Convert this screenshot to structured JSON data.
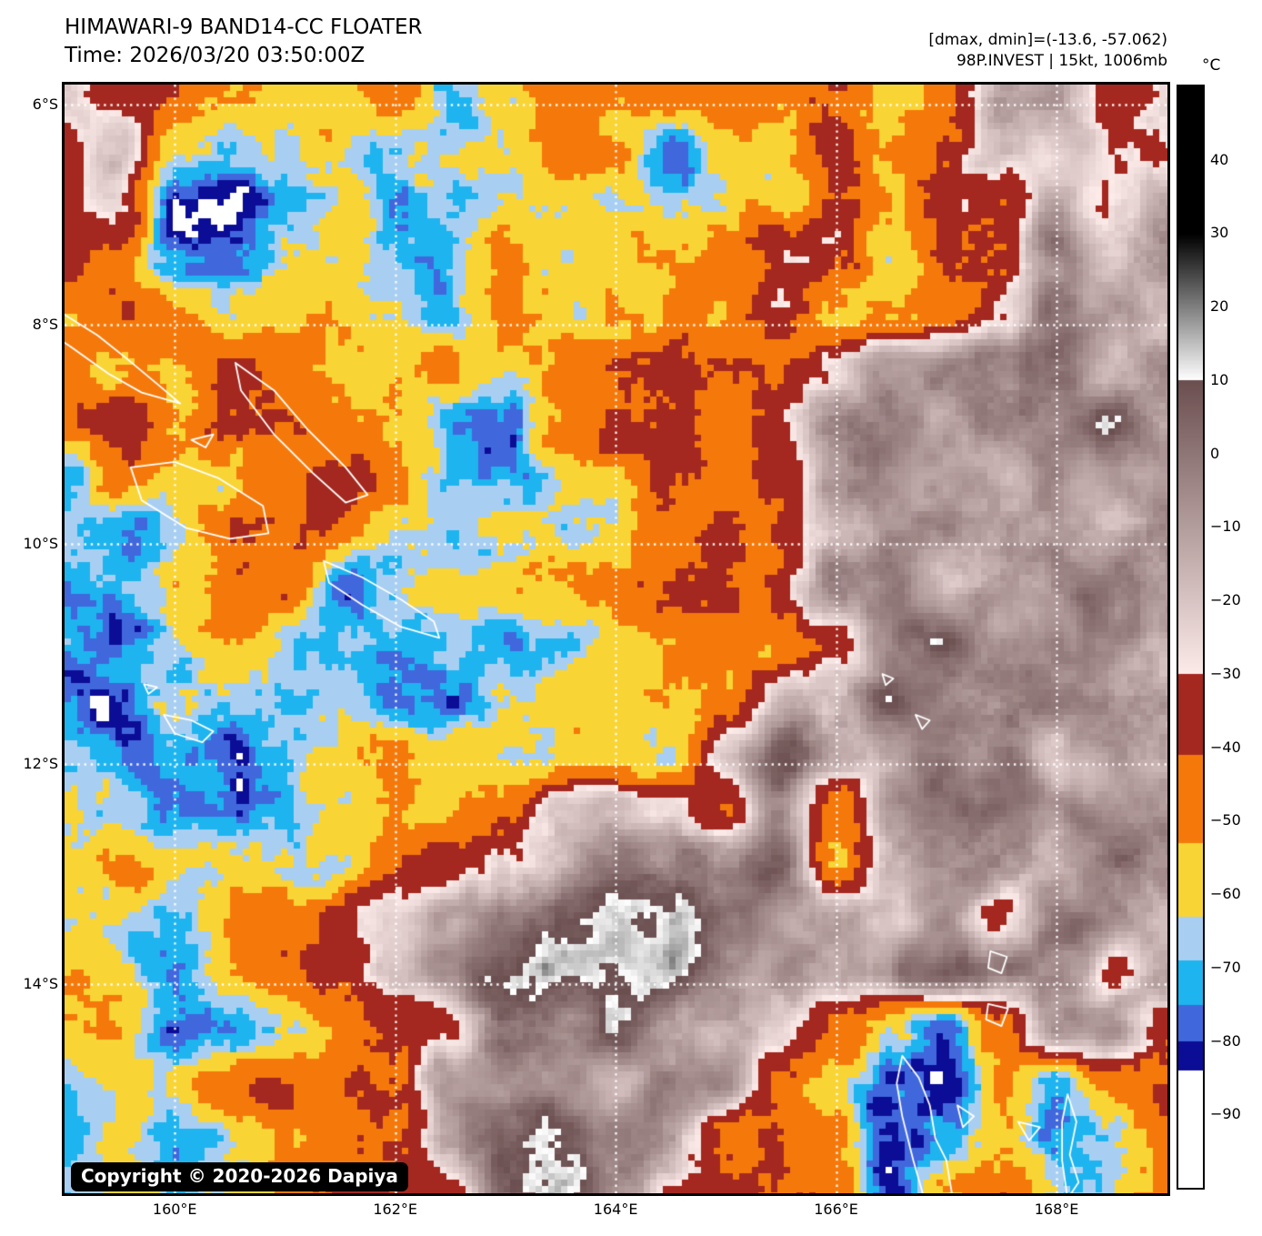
{
  "header": {
    "title": "HIMAWARI-9 BAND14-CC FLOATER",
    "time": "Time: 2026/03/20 03:50:00Z",
    "dmax_dmin": "[dmax, dmin]=(-13.6, -57.062)",
    "storm_info": "98P.INVEST | 15kt, 1006mb"
  },
  "map": {
    "copyright": "Copyright © 2020-2026 Dapiya",
    "lon_min": 159.0,
    "lon_max": 169.006,
    "lat_min": 5.82,
    "lat_max": 15.9,
    "grid_color": "#ffffff",
    "x_ticks": [
      {
        "label": "160°E",
        "lon": 160
      },
      {
        "label": "162°E",
        "lon": 162
      },
      {
        "label": "164°E",
        "lon": 164
      },
      {
        "label": "166°E",
        "lon": 166
      },
      {
        "label": "168°E",
        "lon": 168
      }
    ],
    "y_ticks": [
      {
        "label": "6°S",
        "lat": 6
      },
      {
        "label": "8°S",
        "lat": 8
      },
      {
        "label": "10°S",
        "lat": 10
      },
      {
        "label": "12°S",
        "lat": 12
      },
      {
        "label": "14°S",
        "lat": 14
      }
    ]
  },
  "colorbar": {
    "unit": "°C",
    "top_temp": 50,
    "bottom_temp": -100,
    "ticks": [
      {
        "t": 40,
        "label": "40"
      },
      {
        "t": 30,
        "label": "30"
      },
      {
        "t": 20,
        "label": "20"
      },
      {
        "t": 10,
        "label": "10"
      },
      {
        "t": 0,
        "label": "0"
      },
      {
        "t": -10,
        "label": "−10"
      },
      {
        "t": -20,
        "label": "−20"
      },
      {
        "t": -30,
        "label": "−30"
      },
      {
        "t": -40,
        "label": "−40"
      },
      {
        "t": -50,
        "label": "−50"
      },
      {
        "t": -60,
        "label": "−60"
      },
      {
        "t": -70,
        "label": "−70"
      },
      {
        "t": -80,
        "label": "−80"
      },
      {
        "t": -90,
        "label": "−90"
      }
    ],
    "palette_bands": [
      {
        "min": 30,
        "max": 50,
        "type": "solid",
        "color": "#000000"
      },
      {
        "min": 10,
        "max": 30,
        "type": "gradient",
        "from": "#ffffff",
        "to": "#000000"
      },
      {
        "min": -30,
        "max": 10,
        "type": "gradient",
        "from": "#fcebe9",
        "to": "#6b4f50"
      },
      {
        "min": -41,
        "max": -30,
        "type": "solid",
        "color": "#a4281f"
      },
      {
        "min": -53,
        "max": -41,
        "type": "solid",
        "color": "#f5790a"
      },
      {
        "min": -63,
        "max": -53,
        "type": "solid",
        "color": "#f9d435"
      },
      {
        "min": -69,
        "max": -63,
        "type": "solid",
        "color": "#a8cff2"
      },
      {
        "min": -75,
        "max": -69,
        "type": "solid",
        "color": "#1eb4ef"
      },
      {
        "min": -80,
        "max": -75,
        "type": "solid",
        "color": "#4167dd"
      },
      {
        "min": -84,
        "max": -80,
        "type": "solid",
        "color": "#0b0d96"
      },
      {
        "min": -101,
        "max": -84,
        "type": "solid",
        "color": "#ffffff"
      }
    ]
  },
  "field": {
    "comment": "Coarse brightness-temperature grid (°C), lon 159→169 step 0.5, lat 5.9→15.9 step 0.5",
    "lon0": 159.0,
    "dlon": 0.5,
    "lat0": 5.9,
    "dlat": 0.5,
    "cols": 21,
    "rows": 21,
    "noise_octaves": [
      [
        95,
        7.0
      ],
      [
        40,
        5.5
      ],
      [
        17,
        4.0
      ],
      [
        7.3,
        2.2
      ]
    ],
    "temps": [
      [
        -22,
        -36,
        -36,
        -47,
        -56,
        -64,
        -46,
        -68,
        -57,
        -48,
        -47,
        -50,
        -47,
        -57,
        -45,
        -57,
        -40,
        -8,
        -15,
        -45,
        -25
      ],
      [
        -36,
        -22,
        -58,
        -64,
        -60,
        -57,
        -70,
        -65,
        -56,
        -46,
        -48,
        -76,
        -56,
        -58,
        -40,
        -56,
        -44,
        -12,
        -18,
        -26,
        -30
      ],
      [
        -32,
        -26,
        -78,
        -81,
        -64,
        -56,
        -71,
        -66,
        -56,
        -57,
        -57,
        -63,
        -57,
        -57,
        -38,
        -55,
        -37,
        -36,
        -6,
        -24,
        -8
      ],
      [
        -46,
        -45,
        -72,
        -73,
        -63,
        -57,
        -66,
        -64,
        -56,
        -56,
        -57,
        -57,
        -56,
        -40,
        -42,
        -64,
        -37,
        -44,
        -5,
        -22,
        -8
      ],
      [
        -55,
        -46,
        -46,
        -57,
        -56,
        -55,
        -63,
        -69,
        -55,
        -57,
        -57,
        -55,
        -56,
        -39,
        -64,
        -54,
        -46,
        -35,
        -4,
        -6,
        -20
      ],
      [
        -47,
        -56,
        -56,
        -38,
        -46,
        -57,
        -62,
        -48,
        -57,
        -47,
        -38,
        -40,
        -47,
        -48,
        -30,
        -6,
        -5,
        -4,
        6,
        -15,
        -5
      ],
      [
        -46,
        -36,
        -56,
        -38,
        -36,
        -47,
        -57,
        -65,
        -70,
        -48,
        -38,
        -36,
        -46,
        -30,
        -12,
        -5,
        -6,
        -4,
        -6,
        8,
        -5
      ],
      [
        -68,
        -50,
        -56,
        -57,
        -47,
        -42,
        -48,
        -70,
        -73,
        -64,
        -57,
        -38,
        -44,
        -35,
        -15,
        -6,
        -5,
        -18,
        -6,
        -5,
        -12
      ],
      [
        -74,
        -79,
        -64,
        -47,
        -46,
        -52,
        -65,
        -71,
        -66,
        -63,
        -56,
        -46,
        -38,
        -38,
        -20,
        -8,
        -5,
        -6,
        -5,
        -14,
        -6
      ],
      [
        -70,
        -64,
        -56,
        -46,
        -46,
        -80,
        -64,
        -57,
        -56,
        -47,
        -40,
        -44,
        -46,
        -38,
        -8,
        -6,
        -20,
        -5,
        -8,
        -5,
        -6
      ],
      [
        -65,
        -77,
        -66,
        -57,
        -66,
        -70,
        -72,
        -64,
        -75,
        -66,
        -57,
        -47,
        -44,
        -57,
        -36,
        -6,
        4,
        -6,
        -5,
        -6,
        -15
      ],
      [
        -78,
        -82,
        -70,
        -66,
        -72,
        -70,
        -73,
        -78,
        -70,
        -64,
        -57,
        -48,
        -46,
        -20,
        -18,
        8,
        -4,
        -6,
        -4,
        -5,
        -6
      ],
      [
        -71,
        -81,
        -74,
        -78,
        -64,
        -57,
        -48,
        -58,
        -64,
        -57,
        -57,
        -56,
        -25,
        5,
        -8,
        -12,
        -6,
        -5,
        -20,
        -5,
        -6
      ],
      [
        -66,
        -70,
        -81,
        -77,
        -71,
        -64,
        -57,
        -57,
        -47,
        -20,
        -15,
        -18,
        -46,
        -12,
        -44,
        -10,
        -6,
        -5,
        -6,
        -5,
        -5
      ],
      [
        -56,
        -48,
        -68,
        -64,
        -63,
        -57,
        -46,
        -40,
        -18,
        -12,
        8,
        -5,
        -8,
        5,
        -45,
        -15,
        -6,
        -5,
        -12,
        -6,
        -5
      ],
      [
        -57,
        -64,
        -66,
        -56,
        -47,
        -38,
        -24,
        -10,
        -6,
        10,
        13,
        12,
        -6,
        -10,
        -5,
        -15,
        -6,
        -36,
        -6,
        -5,
        -20
      ],
      [
        -47,
        -57,
        -70,
        -57,
        -46,
        -38,
        -15,
        -6,
        12,
        14,
        13,
        10,
        -5,
        -8,
        -6,
        -4,
        8,
        -6,
        -5,
        -35,
        -8
      ],
      [
        -56,
        -48,
        -73,
        -80,
        -64,
        -46,
        -38,
        -36,
        -6,
        -5,
        12,
        -6,
        -5,
        -22,
        -46,
        -60,
        -76,
        -46,
        -6,
        -5,
        -36
      ],
      [
        -64,
        -57,
        -58,
        -48,
        -40,
        -44,
        -40,
        -6,
        -5,
        -5,
        -18,
        -5,
        -6,
        -38,
        -60,
        -78,
        -80,
        -48,
        -68,
        -46,
        -38
      ],
      [
        -64,
        -57,
        -72,
        -66,
        -57,
        -47,
        -46,
        -8,
        12,
        10,
        -6,
        -15,
        -46,
        -36,
        -44,
        -80,
        -74,
        -52,
        -70,
        -64,
        -46
      ],
      [
        -60,
        -57,
        -70,
        -66,
        -57,
        -48,
        -40,
        -36,
        -5,
        8,
        -6,
        -36,
        -38,
        -36,
        -40,
        -76,
        -50,
        -46,
        -68,
        -60,
        -44
      ]
    ]
  },
  "coastlines": [
    {
      "name": "santa-isabel",
      "pts": [
        [
          158.9,
          7.85
        ],
        [
          159.3,
          8.1
        ],
        [
          159.55,
          8.3
        ],
        [
          159.85,
          8.55
        ],
        [
          160.05,
          8.72
        ],
        [
          159.7,
          8.62
        ],
        [
          159.4,
          8.45
        ],
        [
          159.05,
          8.2
        ],
        [
          158.9,
          8.1
        ]
      ]
    },
    {
      "name": "malaita",
      "pts": [
        [
          160.55,
          8.35
        ],
        [
          160.9,
          8.6
        ],
        [
          161.2,
          8.95
        ],
        [
          161.55,
          9.3
        ],
        [
          161.75,
          9.55
        ],
        [
          161.55,
          9.62
        ],
        [
          161.25,
          9.35
        ],
        [
          160.9,
          9.0
        ],
        [
          160.6,
          8.6
        ]
      ]
    },
    {
      "name": "guadalcanal",
      "pts": [
        [
          159.6,
          9.3
        ],
        [
          160.0,
          9.25
        ],
        [
          160.4,
          9.4
        ],
        [
          160.8,
          9.65
        ],
        [
          160.85,
          9.9
        ],
        [
          160.5,
          9.95
        ],
        [
          160.1,
          9.85
        ],
        [
          159.7,
          9.6
        ]
      ]
    },
    {
      "name": "makira",
      "pts": [
        [
          161.35,
          10.15
        ],
        [
          161.7,
          10.3
        ],
        [
          162.05,
          10.5
        ],
        [
          162.35,
          10.7
        ],
        [
          162.4,
          10.85
        ],
        [
          162.05,
          10.75
        ],
        [
          161.7,
          10.55
        ],
        [
          161.4,
          10.35
        ]
      ]
    },
    {
      "name": "florida-island",
      "pts": [
        [
          160.15,
          9.05
        ],
        [
          160.35,
          9.0
        ],
        [
          160.28,
          9.12
        ]
      ]
    },
    {
      "name": "rennell",
      "pts": [
        [
          159.9,
          11.55
        ],
        [
          160.15,
          11.6
        ],
        [
          160.35,
          11.7
        ],
        [
          160.25,
          11.8
        ],
        [
          160.0,
          11.72
        ]
      ]
    },
    {
      "name": "bellona",
      "pts": [
        [
          159.72,
          11.27
        ],
        [
          159.84,
          11.3
        ],
        [
          159.76,
          11.36
        ]
      ]
    },
    {
      "name": "reef-islands",
      "pts": [
        [
          166.42,
          11.18
        ],
        [
          166.52,
          11.22
        ],
        [
          166.45,
          11.28
        ]
      ]
    },
    {
      "name": "utupua",
      "pts": [
        [
          166.72,
          11.55
        ],
        [
          166.85,
          11.6
        ],
        [
          166.78,
          11.68
        ]
      ]
    },
    {
      "name": "vanua-lava",
      "pts": [
        [
          167.4,
          13.7
        ],
        [
          167.55,
          13.75
        ],
        [
          167.5,
          13.9
        ],
        [
          167.38,
          13.85
        ]
      ]
    },
    {
      "name": "gaua",
      "pts": [
        [
          167.38,
          14.18
        ],
        [
          167.56,
          14.22
        ],
        [
          167.5,
          14.38
        ],
        [
          167.36,
          14.32
        ]
      ]
    },
    {
      "name": "espiritu-santo",
      "pts": [
        [
          166.6,
          14.65
        ],
        [
          166.75,
          14.85
        ],
        [
          166.85,
          15.1
        ],
        [
          166.9,
          15.4
        ],
        [
          167.0,
          15.6
        ],
        [
          167.05,
          15.9
        ],
        [
          166.8,
          15.95
        ],
        [
          166.7,
          15.6
        ],
        [
          166.6,
          15.2
        ],
        [
          166.55,
          14.9
        ]
      ]
    },
    {
      "name": "malo",
      "pts": [
        [
          167.1,
          15.1
        ],
        [
          167.25,
          15.2
        ],
        [
          167.15,
          15.3
        ]
      ]
    },
    {
      "name": "ambae",
      "pts": [
        [
          167.65,
          15.25
        ],
        [
          167.85,
          15.3
        ],
        [
          167.75,
          15.42
        ]
      ]
    },
    {
      "name": "maewo-pentecost",
      "pts": [
        [
          168.1,
          15.0
        ],
        [
          168.18,
          15.25
        ],
        [
          168.12,
          15.55
        ],
        [
          168.2,
          15.8
        ],
        [
          168.1,
          15.95
        ],
        [
          168.05,
          15.6
        ],
        [
          168.05,
          15.25
        ]
      ]
    }
  ]
}
